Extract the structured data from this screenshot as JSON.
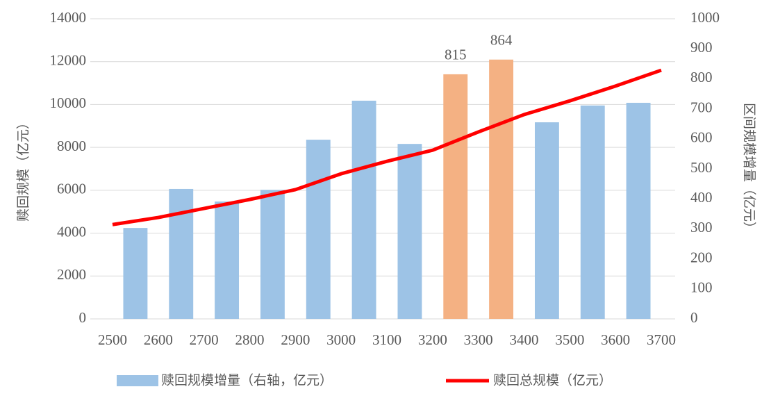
{
  "chart_data": {
    "type": "bar",
    "ylabel": "赎回规模（亿元）",
    "y2label": "区间规模增量（亿元）",
    "xlim": [
      2500,
      3700
    ],
    "xticks": [
      2500,
      2600,
      2700,
      2800,
      2900,
      3000,
      3100,
      3200,
      3300,
      3400,
      3500,
      3600,
      3700
    ],
    "ylim": [
      0,
      14000
    ],
    "yticks": [
      0,
      2000,
      4000,
      6000,
      8000,
      10000,
      12000,
      14000
    ],
    "y2lim": [
      0,
      1000
    ],
    "y2ticks": [
      0,
      100,
      200,
      300,
      400,
      500,
      600,
      700,
      800,
      900,
      1000
    ],
    "grid": true,
    "legend": "bottom",
    "series": [
      {
        "name": "赎回规模增量（右轴，亿元）",
        "type": "bar",
        "axis": "y2",
        "color": "#9dc3e6",
        "colors": [
          "#9dc3e6",
          "#9dc3e6",
          "#9dc3e6",
          "#9dc3e6",
          "#9dc3e6",
          "#9dc3e6",
          "#9dc3e6",
          "#f4b183",
          "#f4b183",
          "#9dc3e6",
          "#9dc3e6",
          "#9dc3e6"
        ],
        "bins": [
          2500,
          2600,
          2700,
          2800,
          2900,
          3000,
          3100,
          3200,
          3300,
          3400,
          3500,
          3600,
          3700
        ],
        "values": [
          303,
          433,
          391,
          430,
          597,
          727,
          583,
          815,
          864,
          655,
          711,
          720
        ],
        "value_labels": [
          null,
          null,
          null,
          null,
          null,
          null,
          null,
          "815",
          "864",
          null,
          null,
          null
        ]
      },
      {
        "name": "赎回总规模（亿元）",
        "type": "line",
        "axis": "y",
        "color": "#ff0000",
        "x": [
          2500,
          2600,
          2700,
          2800,
          2900,
          3000,
          3100,
          3200,
          3300,
          3400,
          3500,
          3600,
          3700
        ],
        "values": [
          4400,
          4730,
          5150,
          5570,
          6030,
          6770,
          7350,
          7870,
          8720,
          9530,
          10170,
          10860,
          11600
        ]
      }
    ]
  }
}
